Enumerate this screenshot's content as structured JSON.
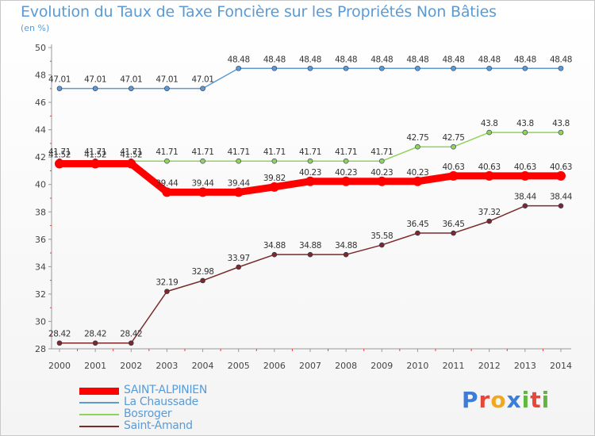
{
  "title": "Evolution du Taux de Taxe Foncière sur les Propriétés Non Bâties",
  "unit": "(en %)",
  "logo": {
    "letters": [
      "P",
      "r",
      "o",
      "x",
      "i",
      "t",
      "i"
    ],
    "colors": [
      "#3b7dd8",
      "#e8453c",
      "#f2a81d",
      "#3b7dd8",
      "#5fb83b",
      "#e8453c",
      "#5fb83b"
    ]
  },
  "chart_data": {
    "type": "line",
    "title": "Evolution du Taux de Taxe Foncière sur les Propriétés Non Bâties",
    "ylabel": "(en %)",
    "xlabel": "",
    "x": [
      "2000",
      "2001",
      "2002",
      "2003",
      "2004",
      "2005",
      "2006",
      "2007",
      "2008",
      "2009",
      "2010",
      "2011",
      "2012",
      "2013",
      "2014"
    ],
    "ylim": [
      28,
      50
    ],
    "yticks": [
      28,
      30,
      32,
      34,
      36,
      38,
      40,
      42,
      44,
      46,
      48,
      50
    ],
    "grid": false,
    "legend_position": "bottom-left",
    "series": [
      {
        "name": "SAINT-ALPINIEN",
        "color": "#ff0000",
        "values": [
          41.52,
          41.52,
          41.52,
          39.44,
          39.44,
          39.44,
          39.82,
          40.23,
          40.23,
          40.23,
          40.23,
          40.63,
          40.63,
          40.63,
          40.63
        ],
        "labels": [
          "41.52",
          "41.52",
          "41.52",
          "39.44",
          "39.44",
          "39.44",
          "39.82",
          "40.23",
          "40.23",
          "40.23",
          "40.23",
          "40.63",
          "40.63",
          "40.63",
          "40.63"
        ]
      },
      {
        "name": "La Chaussade",
        "color": "#5b9bd5",
        "values": [
          47.01,
          47.01,
          47.01,
          47.01,
          47.01,
          48.48,
          48.48,
          48.48,
          48.48,
          48.48,
          48.48,
          48.48,
          48.48,
          48.48,
          48.48
        ],
        "labels": [
          "47.01",
          "47.01",
          "47.01",
          "47.01",
          "47.01",
          "48.48",
          "48.48",
          "48.48",
          "48.48",
          "48.48",
          "48.48",
          "48.48",
          "48.48",
          "48.48",
          "48.48"
        ]
      },
      {
        "name": "Bosroger",
        "color": "#8fd45a",
        "values": [
          41.71,
          41.71,
          41.71,
          41.71,
          41.71,
          41.71,
          41.71,
          41.71,
          41.71,
          41.71,
          42.75,
          42.75,
          43.8,
          43.8,
          43.8
        ],
        "labels": [
          "41.71",
          "41.71",
          "41.71",
          "41.71",
          "41.71",
          "41.71",
          "41.71",
          "41.71",
          "41.71",
          "41.71",
          "42.75",
          "42.75",
          "43.8",
          "43.8",
          "43.8"
        ]
      },
      {
        "name": "Saint-Amand",
        "color": "#7a2a2a",
        "values": [
          28.42,
          28.42,
          28.42,
          32.19,
          32.98,
          33.97,
          34.88,
          34.88,
          34.88,
          35.58,
          36.45,
          36.45,
          37.32,
          38.44,
          38.44
        ],
        "labels": [
          "28.42",
          "28.42",
          "28.42",
          "32.19",
          "32.98",
          "33.97",
          "34.88",
          "34.88",
          "34.88",
          "35.58",
          "36.45",
          "36.45",
          "37.32",
          "38.44",
          "38.44"
        ]
      }
    ]
  }
}
